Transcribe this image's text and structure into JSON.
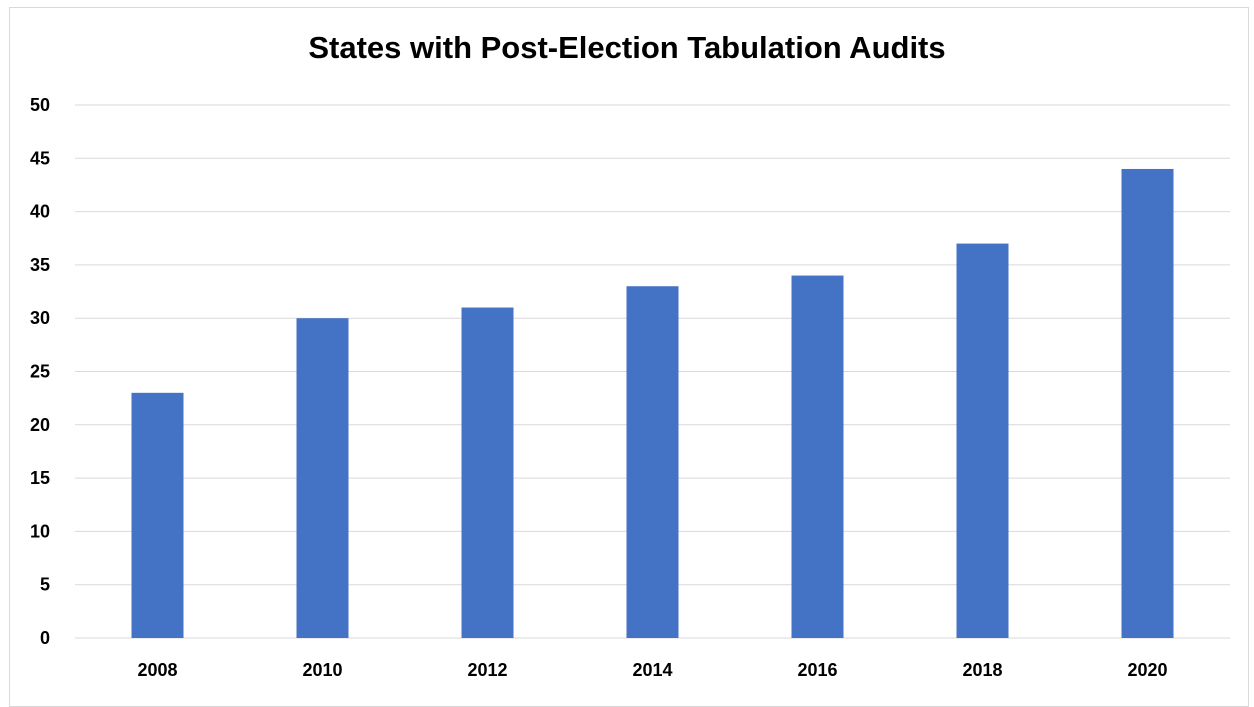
{
  "chart_data": {
    "type": "bar",
    "title": "States with Post-Election Tabulation Audits",
    "xlabel": "",
    "ylabel": "",
    "categories": [
      "2008",
      "2010",
      "2012",
      "2014",
      "2016",
      "2018",
      "2020"
    ],
    "values": [
      23,
      30,
      31,
      33,
      34,
      37,
      44
    ],
    "ylim": [
      0,
      50
    ],
    "yticks": [
      0,
      5,
      10,
      15,
      20,
      25,
      30,
      35,
      40,
      45,
      50
    ],
    "grid": true,
    "legend": "none",
    "bar_color": "#4472c4",
    "grid_color": "#d9d9d9"
  }
}
